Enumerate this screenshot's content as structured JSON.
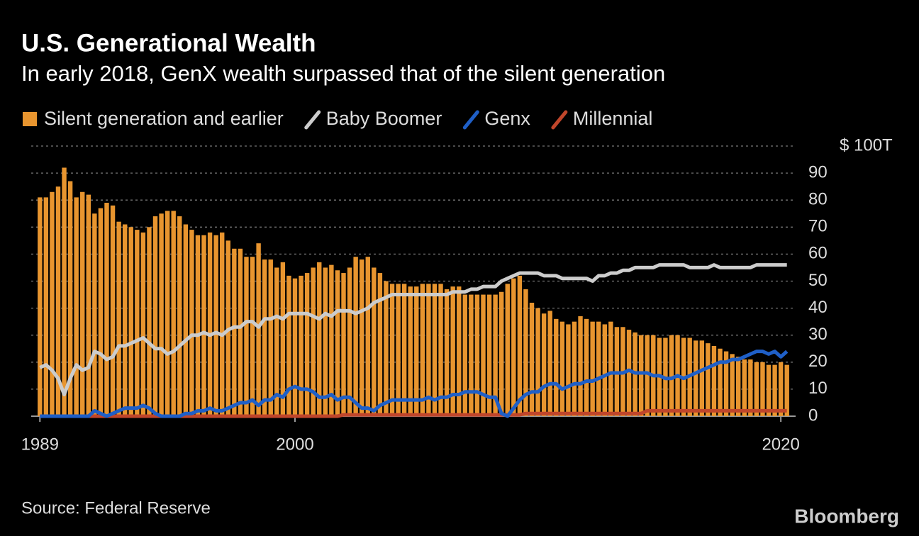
{
  "chart_data": {
    "type": "bar_line",
    "title": "U.S. Generational Wealth",
    "subtitle": "In early 2018, GenX wealth surpassed that of the silent generation",
    "source": "Source: Federal Reserve",
    "logo": "Bloomberg",
    "categories": [
      "1989",
      null,
      null,
      null,
      null,
      null,
      null,
      null,
      null,
      null,
      null,
      null,
      null,
      null,
      null,
      null,
      null,
      null,
      null,
      null,
      null,
      null,
      null,
      null,
      null,
      null,
      null,
      null,
      null,
      null,
      null,
      null,
      null,
      null,
      null,
      null,
      null,
      null,
      null,
      null,
      null,
      null,
      "2000",
      null,
      null,
      null,
      null,
      null,
      null,
      null,
      null,
      null,
      null,
      null,
      null,
      null,
      null,
      null,
      null,
      null,
      null,
      null,
      null,
      null,
      null,
      null,
      null,
      null,
      null,
      null,
      null,
      null,
      null,
      null,
      null,
      null,
      null,
      null,
      null,
      null,
      null,
      null,
      null,
      null,
      null,
      null,
      null,
      null,
      null,
      null,
      null,
      null,
      null,
      null,
      null,
      null,
      null,
      null,
      null,
      null,
      null,
      null,
      null,
      null,
      null,
      null,
      null,
      null,
      null,
      null,
      null,
      null,
      null,
      null,
      null,
      null,
      null,
      null,
      null,
      null,
      null,
      null,
      "2020",
      null
    ],
    "series": [
      {
        "name": "Silent generation and earlier",
        "kind": "bar",
        "color": "#e8952f",
        "values": [
          81,
          81,
          83,
          85,
          92,
          87,
          81,
          83,
          82,
          75,
          77,
          79,
          78,
          72,
          71,
          70,
          69,
          68,
          70,
          74,
          75,
          76,
          76,
          74,
          71,
          69,
          67,
          67,
          68,
          67,
          68,
          65,
          62,
          62,
          59,
          59,
          64,
          58,
          58,
          55,
          57,
          52,
          51,
          52,
          53,
          55,
          57,
          55,
          56,
          54,
          53,
          55,
          59,
          58,
          59,
          55,
          53,
          50,
          49,
          49,
          49,
          48,
          48,
          49,
          49,
          49,
          49,
          47,
          48,
          48,
          45,
          45,
          45,
          45,
          45,
          45,
          46,
          49,
          51,
          52,
          47,
          42,
          40,
          38,
          39,
          36,
          35,
          34,
          35,
          37,
          36,
          35,
          35,
          34,
          35,
          33,
          33,
          32,
          31,
          30,
          30,
          30,
          29,
          29,
          30,
          30,
          29,
          29,
          28,
          28,
          27,
          26,
          25,
          24,
          23,
          22,
          21,
          21,
          20,
          20,
          19,
          19,
          20,
          19
        ]
      },
      {
        "name": "Baby Boomer",
        "kind": "line",
        "color": "#cccccc",
        "values": [
          18,
          19,
          17,
          14,
          8,
          14,
          19,
          17,
          18,
          24,
          23,
          21,
          22,
          26,
          26,
          27,
          28,
          29,
          27,
          25,
          25,
          23,
          24,
          26,
          28,
          30,
          30,
          31,
          30,
          31,
          30,
          32,
          33,
          33,
          35,
          35,
          33,
          36,
          36,
          37,
          36,
          38,
          38,
          38,
          38,
          37,
          36,
          38,
          37,
          39,
          39,
          39,
          38,
          39,
          40,
          42,
          43,
          44,
          45,
          45,
          45,
          45,
          45,
          45,
          45,
          45,
          45,
          45,
          46,
          46,
          46,
          47,
          47,
          48,
          48,
          48,
          50,
          51,
          52,
          53,
          53,
          53,
          53,
          52,
          52,
          52,
          51,
          51,
          51,
          51,
          51,
          50,
          52,
          52,
          53,
          53,
          54,
          54,
          55,
          55,
          55,
          55,
          56,
          56,
          56,
          56,
          56,
          55,
          55,
          55,
          55,
          56,
          55,
          55,
          55,
          55,
          55,
          55,
          56,
          56,
          56,
          56,
          56,
          56
        ]
      },
      {
        "name": "Genx",
        "kind": "line",
        "color": "#1f5fc7",
        "values": [
          0,
          0,
          0,
          0,
          0,
          0,
          0,
          0,
          0,
          2,
          1,
          0,
          1,
          2,
          3,
          3,
          3,
          4,
          3,
          1,
          0,
          0,
          0,
          0,
          1,
          1,
          2,
          2,
          3,
          2,
          2,
          3,
          4,
          5,
          5,
          6,
          4,
          6,
          6,
          8,
          7,
          10,
          11,
          10,
          10,
          9,
          7,
          7,
          8,
          6,
          7,
          7,
          5,
          3,
          3,
          2,
          4,
          5,
          6,
          6,
          6,
          6,
          6,
          6,
          7,
          6,
          7,
          7,
          8,
          8,
          9,
          9,
          9,
          8,
          7,
          7,
          1,
          0,
          3,
          6,
          8,
          9,
          9,
          11,
          12,
          12,
          10,
          11,
          12,
          12,
          13,
          13,
          14,
          15,
          16,
          16,
          16,
          17,
          16,
          16,
          16,
          15,
          15,
          14,
          14,
          15,
          14,
          15,
          16,
          17,
          18,
          19,
          20,
          20,
          21,
          21,
          22,
          23,
          24,
          24,
          23,
          24,
          22,
          24
        ]
      },
      {
        "name": "Millennial",
        "kind": "line",
        "color": "#c0462b",
        "values": [
          0,
          0,
          0,
          0,
          0,
          0,
          0,
          0,
          0,
          0,
          0,
          0,
          0,
          0,
          0,
          0,
          0,
          0,
          0,
          0,
          0,
          0,
          0,
          0,
          0,
          0,
          0,
          0,
          0,
          0,
          0,
          0,
          0,
          0,
          0,
          0,
          0,
          0,
          0,
          0,
          0,
          0,
          0,
          0,
          0,
          0,
          0,
          0,
          0,
          0,
          0.5,
          0.5,
          0.5,
          0.5,
          0.5,
          0.5,
          0.5,
          0.5,
          0.5,
          0.5,
          0.5,
          0.5,
          0.5,
          0.5,
          0.5,
          0.5,
          0.5,
          0.5,
          0.5,
          0.5,
          0.5,
          0.5,
          0.5,
          0.5,
          0.5,
          0.5,
          0.5,
          0.5,
          0.5,
          0.5,
          1,
          1,
          1,
          1,
          1,
          1,
          1,
          1,
          1,
          1,
          1,
          1,
          1,
          1,
          1,
          1,
          1,
          1,
          1,
          1,
          2,
          2,
          2,
          2,
          2,
          2,
          2,
          2,
          2,
          2,
          2,
          2,
          2,
          2,
          2,
          2,
          2,
          2,
          2,
          2,
          2,
          2,
          2,
          2
        ]
      }
    ],
    "ylim": [
      0,
      100
    ],
    "yticks": [
      0,
      10,
      20,
      30,
      40,
      50,
      60,
      70,
      80,
      90,
      {
        "value": 100,
        "label": "$ 100T"
      }
    ],
    "grid": true
  }
}
